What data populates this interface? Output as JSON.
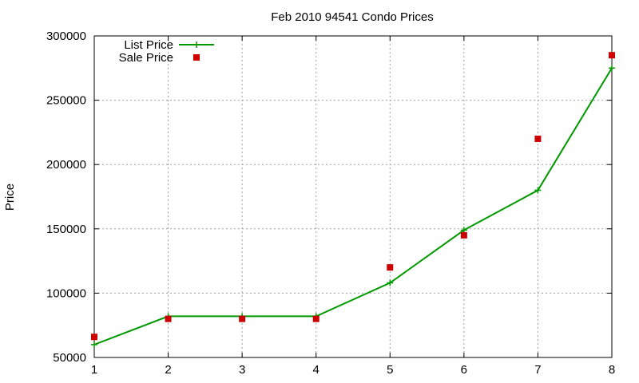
{
  "chart_data": {
    "type": "line",
    "title": "Feb 2010 94541 Condo Prices",
    "xlabel": "",
    "ylabel": "Price",
    "x": [
      1,
      2,
      3,
      4,
      5,
      6,
      7,
      8
    ],
    "xlim": [
      1,
      8
    ],
    "ylim": [
      50000,
      300000
    ],
    "xticks": [
      "1",
      "2",
      "3",
      "4",
      "5",
      "6",
      "7",
      "8"
    ],
    "yticks": [
      "50000",
      "100000",
      "150000",
      "200000",
      "250000",
      "300000"
    ],
    "grid": true,
    "legend_position": "top-left",
    "series": [
      {
        "name": "List Price",
        "style": "line+cross",
        "color": "#009900",
        "values": [
          60000,
          82000,
          82000,
          82000,
          108000,
          149000,
          180000,
          275000
        ]
      },
      {
        "name": "Sale Price",
        "style": "square-markers",
        "color": "#cc0000",
        "values": [
          66000,
          80000,
          80000,
          80000,
          120000,
          145000,
          220000,
          285000
        ]
      }
    ]
  }
}
